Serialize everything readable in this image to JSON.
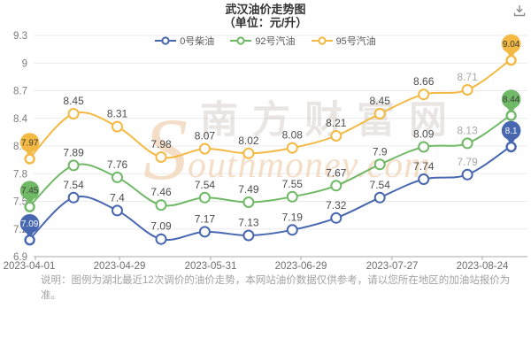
{
  "title": {
    "line1": "武汉油价走势图",
    "line2": "（单位：元/升）"
  },
  "header": {
    "download_icon": "download-icon"
  },
  "watermark": {
    "cn": "南方财富网",
    "en_initial": "S",
    "en_rest": "outhmoney.com"
  },
  "note": "说明：图例为湖北最近12次调价的油价走势，本网站油价数据仅供参考，请以您所在地区的加油站报价为准。",
  "chart_data": {
    "type": "line",
    "title": "武汉油价走势图（单位：元/升）",
    "x_labels": [
      "2023-04-01",
      "2023-04-29",
      "2023-05-31",
      "2023-06-29",
      "2023-07-27",
      "2023-08-24"
    ],
    "y_ticks": [
      "6.9",
      "7.2",
      "7.5",
      "7.8",
      "8.1",
      "8.4",
      "8.7",
      "9",
      "9.3"
    ],
    "ylim": [
      6.9,
      9.3
    ],
    "grid": true,
    "legend_position": "top",
    "smooth": true,
    "muted_label_index": 10,
    "points_per_series": 12,
    "series": [
      {
        "name": "0号柴油",
        "color": "#4767b1",
        "pin_text_color": "#ffffff",
        "values": [
          7.09,
          7.54,
          7.4,
          7.09,
          7.17,
          7.13,
          7.19,
          7.32,
          7.54,
          7.74,
          7.79,
          8.1
        ]
      },
      {
        "name": "92号汽油",
        "color": "#70b967",
        "pin_text_color": "#3a3a3a",
        "values": [
          7.45,
          7.89,
          7.76,
          7.46,
          7.54,
          7.49,
          7.55,
          7.67,
          7.9,
          8.09,
          8.13,
          8.44
        ]
      },
      {
        "name": "95号汽油",
        "color": "#f4b942",
        "pin_text_color": "#3a3a3a",
        "values": [
          7.97,
          8.45,
          8.31,
          7.98,
          8.07,
          8.02,
          8.08,
          8.21,
          8.45,
          8.66,
          8.71,
          9.04
        ]
      }
    ],
    "colors": {
      "axis_line": "#aaaaaa",
      "grid_line": "#ebebeb",
      "axis_text": "#7d7d7d",
      "label_text": "#4c4c4c",
      "label_text_muted": "#a8a8a8",
      "watermark_cn": "#cfc5be",
      "watermark_en": "#f0d3b4"
    }
  }
}
